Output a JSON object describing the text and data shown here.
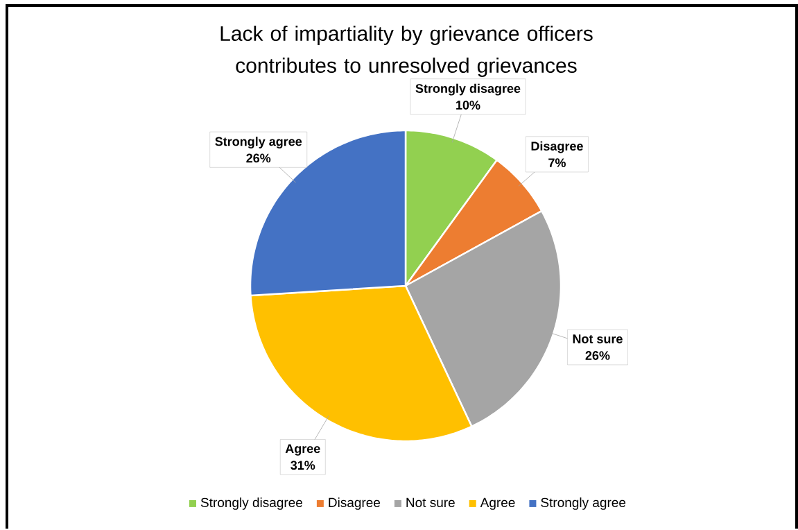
{
  "chart_data": {
    "type": "pie",
    "title": "Lack of impartiality by grievance officers contributes to unresolved grievances",
    "categories": [
      "Strongly disagree",
      "Disagree",
      "Not sure",
      "Agree",
      "Strongly agree"
    ],
    "values": [
      10,
      7,
      26,
      31,
      26
    ],
    "colors": [
      "#92d050",
      "#ed7d31",
      "#a5a5a5",
      "#ffc000",
      "#4472c4"
    ],
    "value_labels": [
      "10%",
      "7%",
      "26%",
      "31%",
      "26%"
    ],
    "data_labels": true,
    "legend": "bottom"
  }
}
